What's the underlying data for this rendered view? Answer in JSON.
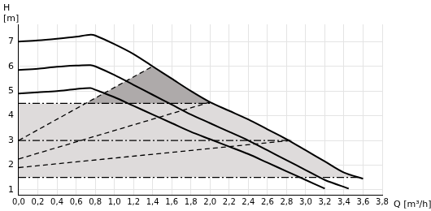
{
  "chart_data": {
    "type": "line",
    "x_label": "Q [m³/h]",
    "y_label": [
      "H",
      "[m]"
    ],
    "xlim": [
      0,
      3.8
    ],
    "ylim": [
      0.8,
      7.7
    ],
    "xticks": [
      {
        "value": 0,
        "label": "0,0"
      },
      {
        "value": 0.2,
        "label": "0,2"
      },
      {
        "value": 0.4,
        "label": "0,4"
      },
      {
        "value": 0.6,
        "label": "0,6"
      },
      {
        "value": 0.8,
        "label": "0,8"
      },
      {
        "value": 1,
        "label": "1,0"
      },
      {
        "value": 1.2,
        "label": "1,2"
      },
      {
        "value": 1.4,
        "label": "1,4"
      },
      {
        "value": 1.6,
        "label": "1,6"
      },
      {
        "value": 1.8,
        "label": "1,8"
      },
      {
        "value": 2,
        "label": "2,0"
      },
      {
        "value": 2.2,
        "label": "2,2"
      },
      {
        "value": 2.4,
        "label": "2,4"
      },
      {
        "value": 2.6,
        "label": "2,6"
      },
      {
        "value": 2.8,
        "label": "2,8"
      },
      {
        "value": 3,
        "label": "3,0"
      },
      {
        "value": 3.2,
        "label": "3,2"
      },
      {
        "value": 3.4,
        "label": "3,4"
      },
      {
        "value": 3.6,
        "label": "3,6"
      },
      {
        "value": 3.8,
        "label": "3,8"
      }
    ],
    "yticks": [
      1,
      2,
      3,
      4,
      5,
      6,
      7
    ],
    "grid": true,
    "series": [
      {
        "type": "area",
        "color": "#dedbdb",
        "x": [
          0,
          0,
          2.0,
          2.2,
          2.4,
          2.6,
          2.8,
          3.0,
          3.2,
          3.4,
          3.55
        ],
        "values": [
          1.5,
          4.5,
          4.5,
          4.2,
          3.85,
          3.45,
          3.05,
          2.6,
          2.15,
          1.7,
          1.5
        ]
      },
      {
        "type": "area",
        "color": "#aeaaaa",
        "x": [
          0,
          1.4,
          1.6,
          1.8,
          2.0,
          2.2,
          2.4,
          2.6,
          2.85,
          0
        ],
        "values": [
          3.0,
          6.0,
          5.5,
          5.0,
          4.55,
          4.2,
          3.85,
          3.45,
          3.0,
          1.9
        ]
      },
      {
        "type": "line",
        "color": "#000000",
        "line_style": "dashdot",
        "x": [
          0,
          2.0
        ],
        "values": [
          4.5,
          4.5
        ]
      },
      {
        "type": "line",
        "color": "#000000",
        "line_style": "dashdot",
        "x": [
          0,
          2.85
        ],
        "values": [
          3.0,
          3.0
        ]
      },
      {
        "type": "line",
        "color": "#000000",
        "line_style": "dashdot",
        "x": [
          0,
          3.55
        ],
        "values": [
          1.5,
          1.5
        ]
      },
      {
        "type": "line",
        "color": "#000000",
        "line_style": "dashed",
        "x": [
          0,
          1.4
        ],
        "values": [
          3.0,
          6.0
        ]
      },
      {
        "type": "line",
        "color": "#000000",
        "line_style": "dashed",
        "x": [
          0,
          2.0
        ],
        "values": [
          2.25,
          4.55
        ]
      },
      {
        "type": "line",
        "color": "#000000",
        "line_style": "dashed",
        "x": [
          0,
          2.85
        ],
        "values": [
          1.9,
          3.0
        ]
      },
      {
        "type": "line",
        "color": "#000000",
        "line_style": "solid",
        "x": [
          0,
          0.2,
          0.4,
          0.6,
          0.75,
          0.8,
          1.0,
          1.2,
          1.4,
          1.6,
          1.8,
          2.0,
          2.2,
          2.4,
          2.6,
          2.8,
          3.0,
          3.2,
          3.4,
          3.6
        ],
        "values": [
          7.0,
          7.05,
          7.12,
          7.2,
          7.28,
          7.25,
          6.9,
          6.5,
          6.0,
          5.5,
          5.0,
          4.55,
          4.2,
          3.85,
          3.45,
          3.05,
          2.6,
          2.15,
          1.7,
          1.45
        ]
      },
      {
        "type": "line",
        "color": "#000000",
        "line_style": "solid",
        "x": [
          0,
          0.2,
          0.4,
          0.6,
          0.75,
          0.8,
          1.0,
          1.2,
          1.4,
          1.6,
          1.8,
          2.0,
          2.2,
          2.4,
          2.6,
          2.8,
          3.0,
          3.2,
          3.45
        ],
        "values": [
          5.85,
          5.9,
          5.98,
          6.03,
          6.05,
          6.0,
          5.65,
          5.25,
          4.85,
          4.45,
          4.05,
          3.7,
          3.35,
          3.0,
          2.6,
          2.2,
          1.8,
          1.4,
          1.05
        ]
      },
      {
        "type": "line",
        "color": "#000000",
        "line_style": "solid",
        "x": [
          0,
          0.2,
          0.4,
          0.6,
          0.75,
          0.8,
          1.0,
          1.2,
          1.4,
          1.6,
          1.8,
          2.0,
          2.2,
          2.4,
          2.6,
          2.8,
          3.0,
          3.2
        ],
        "values": [
          4.9,
          4.95,
          5.0,
          5.08,
          5.12,
          5.05,
          4.75,
          4.4,
          4.05,
          3.7,
          3.35,
          3.05,
          2.75,
          2.45,
          2.1,
          1.75,
          1.4,
          1.05
        ]
      }
    ]
  }
}
